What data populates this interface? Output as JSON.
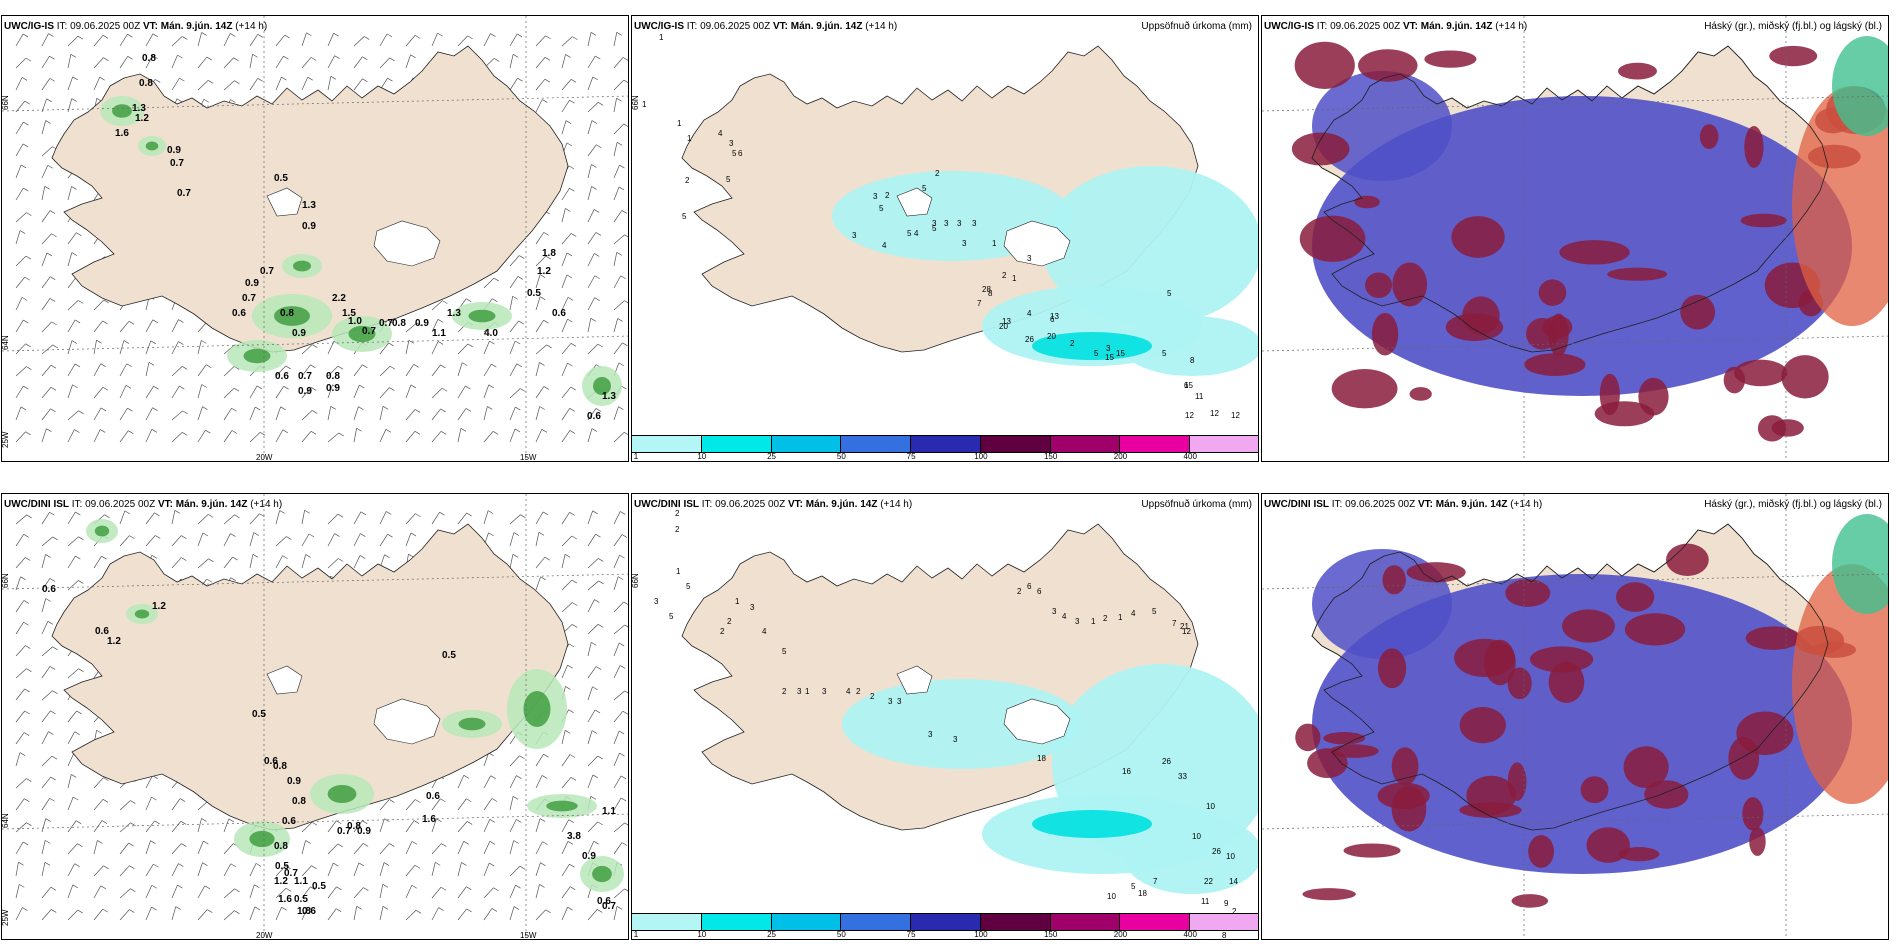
{
  "panels": {
    "r1c1": {
      "model": "UWC/IG-IS",
      "it_label": "IT:",
      "it_value": "09.06.2025 00Z",
      "vt_label": "VT:",
      "vt_value": "Mán. 9.jún. 14Z",
      "lead": "(+14 h)"
    },
    "r1c2": {
      "model": "UWC/IG-IS",
      "it_label": "IT:",
      "it_value": "09.06.2025 00Z",
      "vt_label": "VT:",
      "vt_value": "Mán. 9.jún. 14Z",
      "lead": "(+14 h)",
      "right_title": "Uppsöfnuð úrkoma (mm)"
    },
    "r1c3": {
      "model": "UWC/IG-IS",
      "it_label": "IT:",
      "it_value": "09.06.2025 00Z",
      "vt_label": "VT:",
      "vt_value": "Mán. 9.jún. 14Z",
      "lead": "(+14 h)",
      "right_title": "Háský (gr.), miðský (fj.bl.) og lágský (bl.)"
    },
    "r2c1": {
      "model": "UWC/DINI ISL",
      "it_label": "IT:",
      "it_value": "09.06.2025 00Z",
      "vt_label": "VT:",
      "vt_value": "Mán. 9.jún. 14Z",
      "lead": "(+14 h)"
    },
    "r2c2": {
      "model": "UWC/DINI ISL",
      "it_label": "IT:",
      "it_value": "09.06.2025 00Z",
      "vt_label": "VT:",
      "vt_value": "Mán. 9.jún. 14Z",
      "lead": "(+14 h)",
      "right_title": "Uppsöfnuð úrkoma (mm)"
    },
    "r2c3": {
      "model": "UWC/DINI ISL",
      "it_label": "IT:",
      "it_value": "09.06.2025 00Z",
      "vt_label": "VT:",
      "vt_value": "Mán. 9.jún. 14Z",
      "lead": "(+14 h)",
      "right_title": "Háský (gr.), miðský (fj.bl.) og lágský (bl.)"
    }
  },
  "axis_labels": {
    "lat_66": "66N",
    "lat_64": "64N",
    "lon_25": "25W",
    "lon_20": "20W",
    "lon_15": "15W"
  },
  "colorbar": {
    "labels": [
      "1",
      "10",
      "25",
      "50",
      "75",
      "100",
      "150",
      "200",
      "400"
    ],
    "colors": [
      "#b4f5f5",
      "#00e8e8",
      "#00c0e8",
      "#3470e0",
      "#2a2ab0",
      "#600040",
      "#a0006a",
      "#e800a0",
      "#f0a8f0"
    ]
  },
  "map_labels": {
    "r1c1": [
      "0.8",
      "0.8",
      "1.3",
      "1.2",
      "1.6",
      "0.9",
      "0.7",
      "0.7",
      "0.5",
      "1.3",
      "0.9",
      "0.7",
      "0.9",
      "0.7",
      "0.6",
      "0.8",
      "0.9",
      "2.2",
      "1.5",
      "0.7",
      "1.1",
      "1.3",
      "4.0",
      "0.6",
      "0.7",
      "0.9",
      "0.8",
      "0.9",
      "1.0",
      "0.7",
      "0.8",
      "0.9",
      "1.8",
      "1.2",
      "0.6",
      "0.5",
      "1.3",
      "0.6"
    ],
    "r1c2": [
      "1",
      "1",
      "1",
      "1",
      "2",
      "5",
      "4",
      "3",
      "5",
      "6",
      "5",
      "2",
      "3",
      "5",
      "2",
      "5",
      "4",
      "3",
      "3",
      "1",
      "2",
      "3",
      "1",
      "4",
      "6",
      "2",
      "5",
      "3",
      "20",
      "13",
      "15",
      "15",
      "5",
      "6",
      "8",
      "12",
      "11",
      "12",
      "12",
      "5",
      "28",
      "13",
      "7",
      "3",
      "4",
      "5",
      "5",
      "3",
      "3",
      "3",
      "8",
      "20",
      "26",
      "15"
    ],
    "r2c1": [
      "0.6",
      "1.2",
      "0.6",
      "1.2",
      "0.5",
      "0.5",
      "0.6",
      "0.8",
      "0.9",
      "0.8",
      "0.6",
      "0.8",
      "0.5",
      "1.2",
      "1.6",
      "0.5",
      "1.8",
      "0.6",
      "0.7",
      "1.1",
      "0.5",
      "0.7",
      "0.8",
      "0.9",
      "1.6",
      "0.6",
      "0.7",
      "0.6",
      "3.8",
      "0.9",
      "1.1"
    ],
    "r2c2": [
      "2",
      "2",
      "1",
      "5",
      "3",
      "5",
      "1",
      "2",
      "2",
      "3",
      "4",
      "5",
      "2",
      "3",
      "1",
      "3",
      "4",
      "2",
      "2",
      "3",
      "3",
      "3",
      "3",
      "2",
      "6",
      "6",
      "3",
      "4",
      "3",
      "1",
      "2",
      "1",
      "4",
      "5",
      "7",
      "21",
      "12",
      "18",
      "16",
      "26",
      "33",
      "10",
      "10",
      "26",
      "10",
      "14",
      "22",
      "11",
      "9",
      "7",
      "5",
      "10",
      "18",
      "15",
      "21",
      "2",
      "2",
      "8"
    ]
  },
  "cloud_colors": {
    "land": "#efe0d0",
    "low": "#5050c8",
    "mid": "#8a1c3c",
    "high": "#e06040",
    "high2": "#40c090"
  }
}
